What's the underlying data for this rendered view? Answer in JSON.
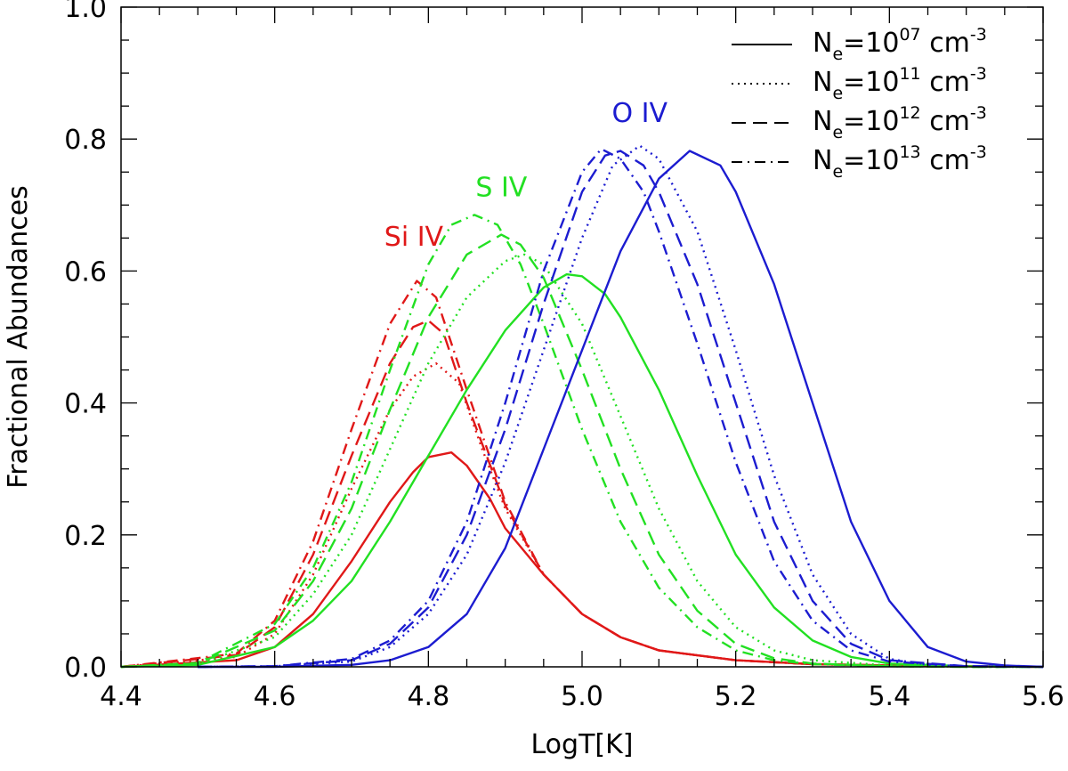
{
  "chart_data": {
    "type": "line",
    "xlabel": "LogT[K]",
    "ylabel": "Fractional Abundances",
    "xlim": [
      4.4,
      5.6
    ],
    "ylim": [
      0.0,
      1.0
    ],
    "x_ticks": [
      "4.4",
      "4.6",
      "4.8",
      "5.0",
      "5.2",
      "5.4",
      "5.6"
    ],
    "x_tick_values": [
      4.4,
      4.6,
      4.8,
      5.0,
      5.2,
      5.4,
      5.6
    ],
    "y_ticks": [
      "0.0",
      "0.2",
      "0.4",
      "0.6",
      "0.8",
      "1.0"
    ],
    "y_tick_values": [
      0.0,
      0.2,
      0.4,
      0.6,
      0.8,
      1.0
    ],
    "legend_position": "top-right",
    "legend": [
      {
        "style": "solid",
        "ne_label": "N",
        "ne_sub": "e",
        "eq": "=10",
        "exp": "07",
        "unit": " cm",
        "unit_exp": "-3"
      },
      {
        "style": "dotted",
        "ne_label": "N",
        "ne_sub": "e",
        "eq": "=10",
        "exp": "11",
        "unit": " cm",
        "unit_exp": "-3"
      },
      {
        "style": "dashed",
        "ne_label": "N",
        "ne_sub": "e",
        "eq": "=10",
        "exp": "12",
        "unit": " cm",
        "unit_exp": "-3"
      },
      {
        "style": "dashdot",
        "ne_label": "N",
        "ne_sub": "e",
        "eq": "=10",
        "exp": "13",
        "unit": " cm",
        "unit_exp": "-3"
      }
    ],
    "annotations": [
      {
        "text": "Si  IV",
        "ion": "Si IV",
        "color": "#e01818",
        "at": [
          4.781,
          0.638
        ]
      },
      {
        "text": "S  IV",
        "ion": "S IV",
        "color": "#22e022",
        "at": [
          4.895,
          0.713
        ]
      },
      {
        "text": "O  IV",
        "ion": "O IV",
        "color": "#1c1cd0",
        "at": [
          5.075,
          0.826
        ]
      }
    ],
    "series": [
      {
        "name": "Si IV, Ne=10^07",
        "ion": "Si IV",
        "style": "solid",
        "color": "#e01818",
        "x": [
          4.4,
          4.55,
          4.6,
          4.65,
          4.7,
          4.75,
          4.78,
          4.8,
          4.83,
          4.85,
          4.88,
          4.9,
          4.95,
          5.0,
          5.05,
          5.1,
          5.2,
          5.3,
          5.4,
          5.5,
          5.6
        ],
        "y": [
          0.0,
          0.01,
          0.03,
          0.08,
          0.16,
          0.25,
          0.295,
          0.318,
          0.325,
          0.305,
          0.255,
          0.21,
          0.14,
          0.08,
          0.045,
          0.025,
          0.01,
          0.004,
          0.002,
          0.001,
          0.0
        ]
      },
      {
        "name": "Si IV, Ne=10^11",
        "ion": "Si IV",
        "style": "dotted",
        "color": "#e01818",
        "x": [
          4.4,
          4.55,
          4.6,
          4.65,
          4.7,
          4.75,
          4.78,
          4.81,
          4.84,
          4.87,
          4.9,
          4.95,
          5.0,
          5.05,
          5.1,
          5.2,
          5.3,
          5.4,
          5.5,
          5.6
        ],
        "y": [
          0.0,
          0.015,
          0.05,
          0.14,
          0.27,
          0.39,
          0.44,
          0.46,
          0.43,
          0.33,
          0.24,
          0.14,
          0.08,
          0.045,
          0.025,
          0.01,
          0.004,
          0.002,
          0.001,
          0.0
        ]
      },
      {
        "name": "Si IV, Ne=10^12",
        "ion": "Si IV",
        "style": "dashed",
        "color": "#e01818",
        "x": [
          4.4,
          4.55,
          4.6,
          4.65,
          4.7,
          4.75,
          4.78,
          4.8,
          4.82,
          4.85,
          4.9,
          4.95,
          5.0,
          5.05,
          5.1,
          5.2,
          5.3,
          5.4,
          5.5,
          5.6
        ],
        "y": [
          0.0,
          0.018,
          0.06,
          0.17,
          0.32,
          0.46,
          0.515,
          0.525,
          0.505,
          0.4,
          0.245,
          0.14,
          0.08,
          0.045,
          0.025,
          0.01,
          0.004,
          0.002,
          0.001,
          0.0
        ]
      },
      {
        "name": "Si IV, Ne=10^13",
        "ion": "Si IV",
        "style": "dashdot",
        "color": "#e01818",
        "x": [
          4.4,
          4.55,
          4.6,
          4.65,
          4.7,
          4.75,
          4.785,
          4.81,
          4.85,
          4.9,
          4.95,
          5.0,
          5.05,
          5.1,
          5.2,
          5.3,
          5.4,
          5.5,
          5.6
        ],
        "y": [
          0.0,
          0.02,
          0.07,
          0.19,
          0.36,
          0.52,
          0.585,
          0.56,
          0.42,
          0.25,
          0.14,
          0.08,
          0.045,
          0.025,
          0.01,
          0.004,
          0.002,
          0.001,
          0.0
        ]
      },
      {
        "name": "S IV, Ne=10^07",
        "ion": "S IV",
        "style": "solid",
        "color": "#22e022",
        "x": [
          4.4,
          4.5,
          4.6,
          4.65,
          4.7,
          4.75,
          4.8,
          4.85,
          4.9,
          4.95,
          4.98,
          5.0,
          5.03,
          5.05,
          5.1,
          5.15,
          5.2,
          5.25,
          5.3,
          5.35,
          5.4,
          5.5,
          5.6
        ],
        "y": [
          0.0,
          0.003,
          0.03,
          0.07,
          0.13,
          0.22,
          0.32,
          0.42,
          0.51,
          0.575,
          0.595,
          0.592,
          0.565,
          0.53,
          0.42,
          0.29,
          0.17,
          0.09,
          0.04,
          0.015,
          0.005,
          0.001,
          0.0
        ]
      },
      {
        "name": "S IV, Ne=10^11",
        "ion": "S IV",
        "style": "dotted",
        "color": "#22e022",
        "x": [
          4.4,
          4.5,
          4.6,
          4.65,
          4.7,
          4.75,
          4.8,
          4.85,
          4.9,
          4.925,
          4.95,
          5.0,
          5.05,
          5.1,
          5.15,
          5.2,
          5.25,
          5.3,
          5.4,
          5.5,
          5.6
        ],
        "y": [
          0.0,
          0.004,
          0.045,
          0.11,
          0.2,
          0.33,
          0.46,
          0.56,
          0.615,
          0.625,
          0.61,
          0.52,
          0.38,
          0.24,
          0.13,
          0.06,
          0.025,
          0.01,
          0.002,
          0.0,
          0.0
        ]
      },
      {
        "name": "S IV, Ne=10^12",
        "ion": "S IV",
        "style": "dashed",
        "color": "#22e022",
        "x": [
          4.4,
          4.5,
          4.6,
          4.65,
          4.7,
          4.75,
          4.8,
          4.85,
          4.895,
          4.92,
          4.95,
          5.0,
          5.05,
          5.1,
          5.15,
          5.2,
          5.25,
          5.3,
          5.4,
          5.5,
          5.6
        ],
        "y": [
          0.0,
          0.005,
          0.055,
          0.13,
          0.24,
          0.39,
          0.53,
          0.625,
          0.655,
          0.64,
          0.59,
          0.45,
          0.3,
          0.17,
          0.085,
          0.035,
          0.013,
          0.005,
          0.001,
          0.0,
          0.0
        ]
      },
      {
        "name": "S IV, Ne=10^13",
        "ion": "S IV",
        "style": "dashdot",
        "color": "#22e022",
        "x": [
          4.4,
          4.5,
          4.6,
          4.65,
          4.7,
          4.75,
          4.8,
          4.83,
          4.86,
          4.89,
          4.92,
          4.95,
          5.0,
          5.05,
          5.1,
          5.15,
          5.2,
          5.25,
          5.3,
          5.4,
          5.5,
          5.6
        ],
        "y": [
          0.0,
          0.006,
          0.065,
          0.15,
          0.28,
          0.45,
          0.61,
          0.67,
          0.685,
          0.67,
          0.61,
          0.52,
          0.36,
          0.22,
          0.12,
          0.06,
          0.025,
          0.01,
          0.004,
          0.001,
          0.0,
          0.0
        ]
      },
      {
        "name": "O IV, Ne=10^07",
        "ion": "O IV",
        "style": "solid",
        "color": "#1c1cd0",
        "x": [
          4.5,
          4.6,
          4.7,
          4.75,
          4.8,
          4.85,
          4.9,
          4.95,
          5.0,
          5.05,
          5.1,
          5.14,
          5.18,
          5.2,
          5.25,
          5.3,
          5.35,
          5.4,
          5.45,
          5.5,
          5.55,
          5.6
        ],
        "y": [
          0.0,
          0.0,
          0.003,
          0.01,
          0.03,
          0.08,
          0.18,
          0.33,
          0.48,
          0.63,
          0.74,
          0.782,
          0.76,
          0.72,
          0.58,
          0.4,
          0.22,
          0.1,
          0.03,
          0.008,
          0.002,
          0.0
        ]
      },
      {
        "name": "O IV, Ne=10^11",
        "ion": "O IV",
        "style": "dotted",
        "color": "#1c1cd0",
        "x": [
          4.5,
          4.6,
          4.7,
          4.75,
          4.8,
          4.85,
          4.9,
          4.95,
          5.0,
          5.04,
          5.075,
          5.1,
          5.15,
          5.2,
          5.25,
          5.3,
          5.35,
          5.4,
          5.45,
          5.5,
          5.6
        ],
        "y": [
          0.0,
          0.001,
          0.008,
          0.03,
          0.08,
          0.17,
          0.31,
          0.48,
          0.65,
          0.76,
          0.79,
          0.77,
          0.66,
          0.48,
          0.29,
          0.14,
          0.05,
          0.012,
          0.003,
          0.001,
          0.0
        ]
      },
      {
        "name": "O IV, Ne=10^12",
        "ion": "O IV",
        "style": "dashed",
        "color": "#1c1cd0",
        "x": [
          4.5,
          4.6,
          4.7,
          4.75,
          4.8,
          4.85,
          4.9,
          4.95,
          5.0,
          5.03,
          5.05,
          5.08,
          5.1,
          5.15,
          5.2,
          5.25,
          5.3,
          5.35,
          5.4,
          5.5,
          5.6
        ],
        "y": [
          0.0,
          0.001,
          0.01,
          0.035,
          0.09,
          0.2,
          0.36,
          0.55,
          0.72,
          0.775,
          0.782,
          0.76,
          0.72,
          0.58,
          0.4,
          0.22,
          0.1,
          0.035,
          0.01,
          0.001,
          0.0
        ]
      },
      {
        "name": "O IV, Ne=10^13",
        "ion": "O IV",
        "style": "dashdot",
        "color": "#1c1cd0",
        "x": [
          4.5,
          4.6,
          4.7,
          4.75,
          4.8,
          4.85,
          4.9,
          4.95,
          5.0,
          5.025,
          5.05,
          5.08,
          5.1,
          5.15,
          5.2,
          5.25,
          5.3,
          5.35,
          5.4,
          5.5,
          5.6
        ],
        "y": [
          0.0,
          0.001,
          0.012,
          0.04,
          0.1,
          0.22,
          0.4,
          0.6,
          0.75,
          0.785,
          0.77,
          0.72,
          0.66,
          0.49,
          0.31,
          0.16,
          0.07,
          0.025,
          0.008,
          0.001,
          0.0
        ]
      }
    ]
  }
}
